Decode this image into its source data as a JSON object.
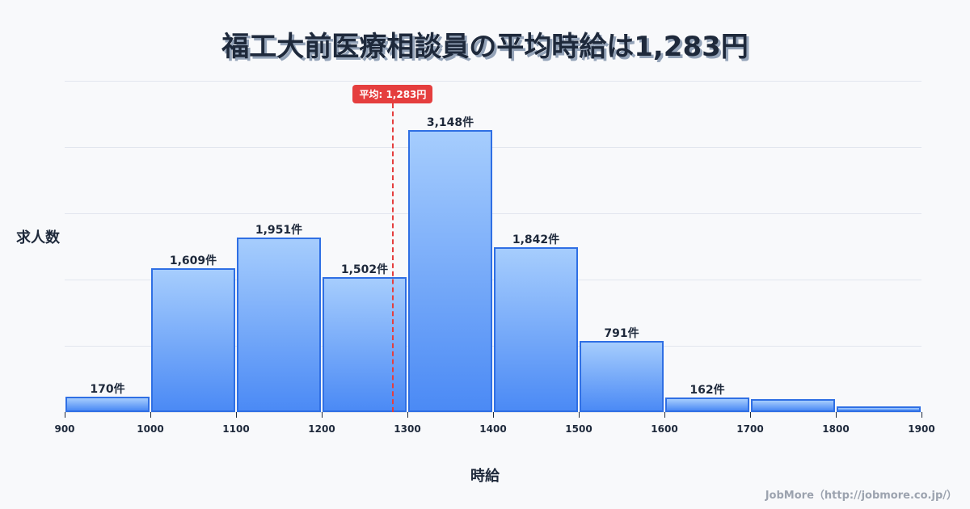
{
  "title": "福工大前医療相談員の平均時給は1,283円",
  "axes": {
    "ylabel": "求人数",
    "xlabel": "時給"
  },
  "mean": {
    "label": "平均: 1,283円",
    "value": 1283,
    "color": "#e53e3e"
  },
  "credit": "JobMore（http://jobmore.co.jp/）",
  "colors": {
    "bar_border": "#2f6fe4",
    "bar_top": "#a6cdfd",
    "bar_bottom": "#4b8af5",
    "text": "#1e293b",
    "background": "#f8f9fb"
  },
  "ticks": [
    "900",
    "1000",
    "1100",
    "1200",
    "1300",
    "1400",
    "1500",
    "1600",
    "1700",
    "1800",
    "1900"
  ],
  "bars": [
    {
      "range": "900-1000",
      "count": 170,
      "label": "170件"
    },
    {
      "range": "1000-1100",
      "count": 1609,
      "label": "1,609件"
    },
    {
      "range": "1100-1200",
      "count": 1951,
      "label": "1,951件"
    },
    {
      "range": "1200-1300",
      "count": 1502,
      "label": "1,502件"
    },
    {
      "range": "1300-1400",
      "count": 3148,
      "label": "3,148件"
    },
    {
      "range": "1400-1500",
      "count": 1842,
      "label": "1,842件"
    },
    {
      "range": "1500-1600",
      "count": 791,
      "label": "791件"
    },
    {
      "range": "1600-1700",
      "count": 162,
      "label": "162件"
    },
    {
      "range": "1700-1800",
      "count": 144,
      "label": ""
    },
    {
      "range": "1800-1900",
      "count": 63,
      "label": ""
    }
  ],
  "chart_data": {
    "type": "bar",
    "title": "福工大前医療相談員の平均時給は1,283円",
    "xlabel": "時給",
    "ylabel": "求人数",
    "categories": [
      "900-1000",
      "1000-1100",
      "1100-1200",
      "1200-1300",
      "1300-1400",
      "1400-1500",
      "1500-1600",
      "1600-1700",
      "1700-1800",
      "1800-1900"
    ],
    "values": [
      170,
      1609,
      1951,
      1502,
      3148,
      1842,
      791,
      162,
      144,
      63
    ],
    "x_ticks": [
      900,
      1000,
      1100,
      1200,
      1300,
      1400,
      1500,
      1600,
      1700,
      1800,
      1900
    ],
    "xlim": [
      900,
      1900
    ],
    "ylim": [
      0,
      3700
    ],
    "grid": true,
    "annotations": [
      {
        "type": "vline",
        "x": 1283,
        "label": "平均: 1,283円",
        "style": "dashed",
        "color": "#e53e3e"
      }
    ],
    "legend": null
  }
}
